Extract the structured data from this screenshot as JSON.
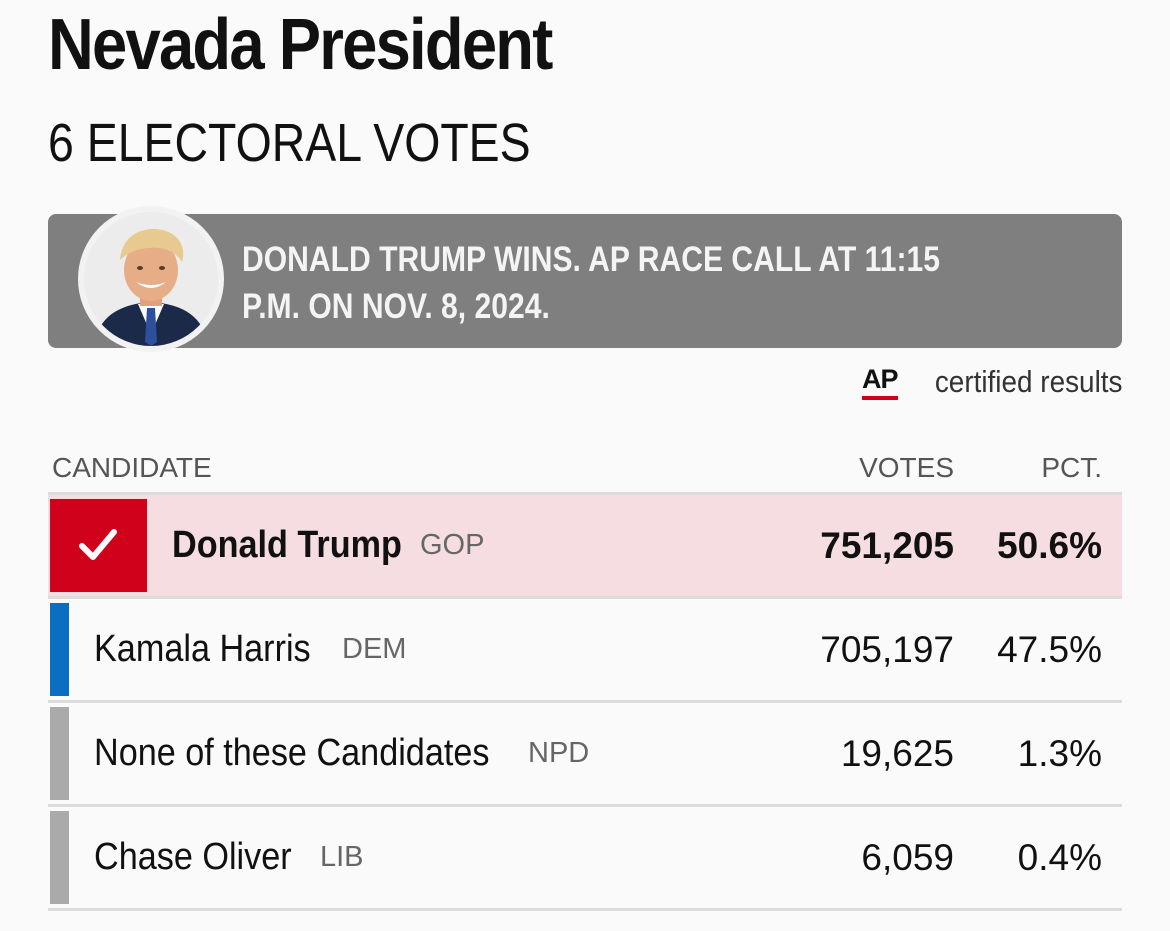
{
  "race": {
    "title": "Nevada President",
    "subtitle": "6 ELECTORAL VOTES"
  },
  "banner": {
    "text": "DONALD TRUMP WINS. AP RACE CALL AT 11:15 P.M. ON NOV. 8, 2024.",
    "background": "#7f7f7f"
  },
  "certification": {
    "logo": "AP",
    "text": "certified results"
  },
  "table": {
    "headers": {
      "candidate": "CANDIDATE",
      "votes": "VOTES",
      "pct": "PCT."
    },
    "rows": [
      {
        "candidate": "Donald Trump",
        "party": "GOP",
        "votes": "751,205",
        "pct": "50.6%",
        "winner": true,
        "color": "#d0021b"
      },
      {
        "candidate": "Kamala Harris",
        "party": "DEM",
        "votes": "705,197",
        "pct": "47.5%",
        "winner": false,
        "color": "#0a6fc2"
      },
      {
        "candidate": "None of these Candidates",
        "party": "NPD",
        "votes": "19,625",
        "pct": "1.3%",
        "winner": false,
        "color": "#aaaaaa"
      },
      {
        "candidate": "Chase Oliver",
        "party": "LIB",
        "votes": "6,059",
        "pct": "0.4%",
        "winner": false,
        "color": "#aaaaaa"
      }
    ]
  }
}
